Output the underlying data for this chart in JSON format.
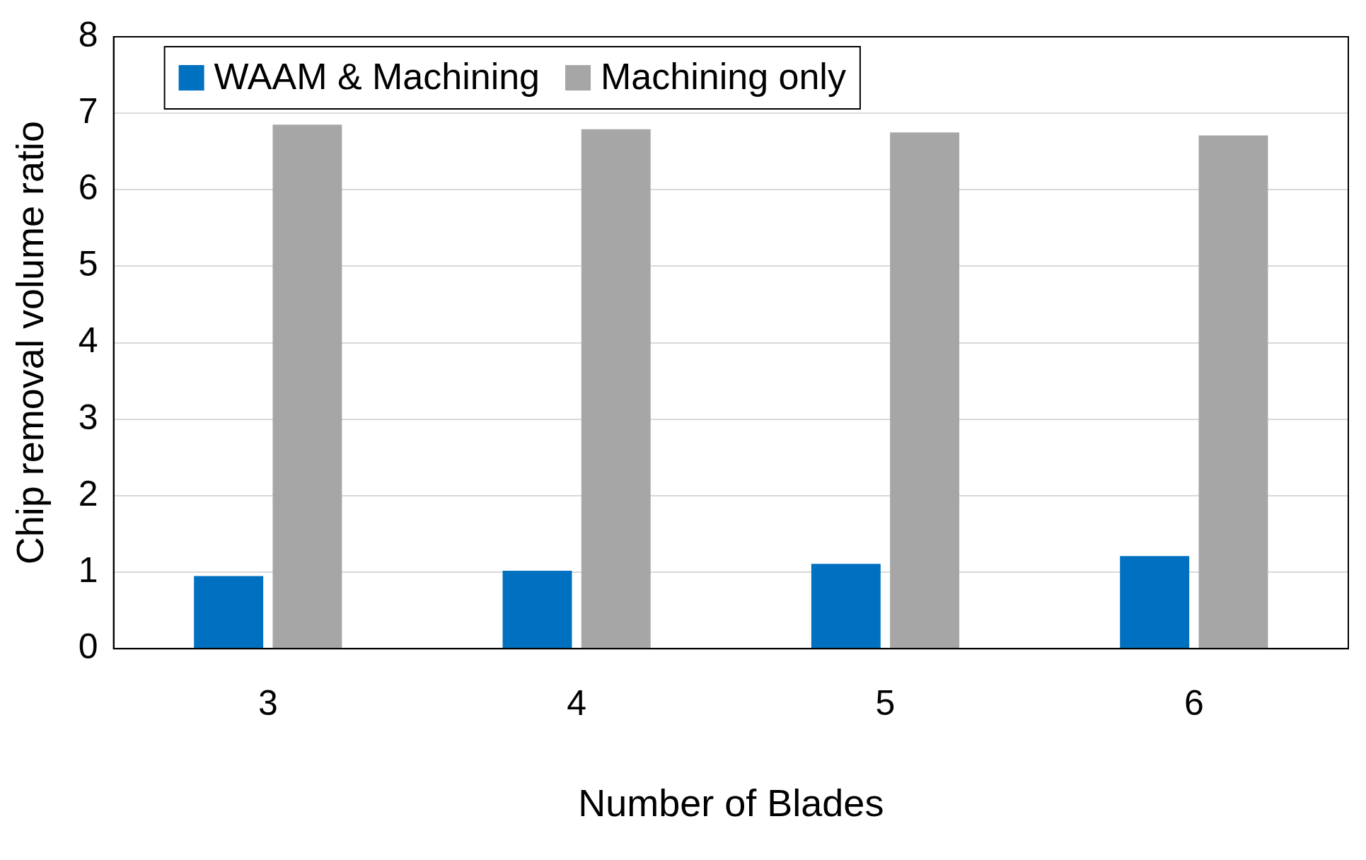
{
  "chart_data": {
    "type": "bar",
    "xlabel": "Number of Blades",
    "ylabel": "Chip removal volume ratio",
    "categories": [
      "3",
      "4",
      "5",
      "6"
    ],
    "series": [
      {
        "name": "WAAM & Machining",
        "color": "#0070c0",
        "values": [
          0.95,
          1.02,
          1.11,
          1.21
        ]
      },
      {
        "name": "Machining only",
        "color": "#a6a6a6",
        "values": [
          6.85,
          6.79,
          6.75,
          6.71
        ]
      }
    ],
    "ylim": [
      0,
      8
    ],
    "yticks": [
      0,
      1,
      2,
      3,
      4,
      5,
      6,
      7,
      8
    ],
    "grid": "y",
    "legend": "top left"
  }
}
